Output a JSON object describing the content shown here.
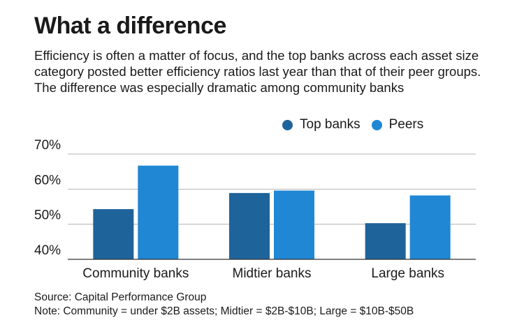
{
  "title": "What a difference",
  "subtitle": "Efficiency is often a matter of focus, and the top banks across each asset size category posted better efficiency ratios last year than that of their peer groups. The difference was especially dramatic among community banks",
  "source": "Source: Capital Performance Group",
  "note": "Note: Community = under $2B assets; Midtier = $2B-$10B; Large = $10B-$50B",
  "colors": {
    "top_banks": "#1f639b",
    "peers": "#1f87d4",
    "grid": "#b3b3b3",
    "axis": "#333333"
  },
  "chart_data": {
    "type": "bar",
    "categories": [
      "Community banks",
      "Midtier banks",
      "Large banks"
    ],
    "series": [
      {
        "name": "Top banks",
        "values": [
          54.3,
          58.9,
          50.3
        ]
      },
      {
        "name": "Peers",
        "values": [
          66.7,
          59.6,
          58.2
        ]
      }
    ],
    "ylim": [
      40,
      70
    ],
    "yticks": [
      40,
      50,
      60,
      70
    ],
    "ytick_labels": [
      "40%",
      "50%",
      "60%",
      "70%"
    ],
    "legend": "top-right",
    "grid": true
  }
}
